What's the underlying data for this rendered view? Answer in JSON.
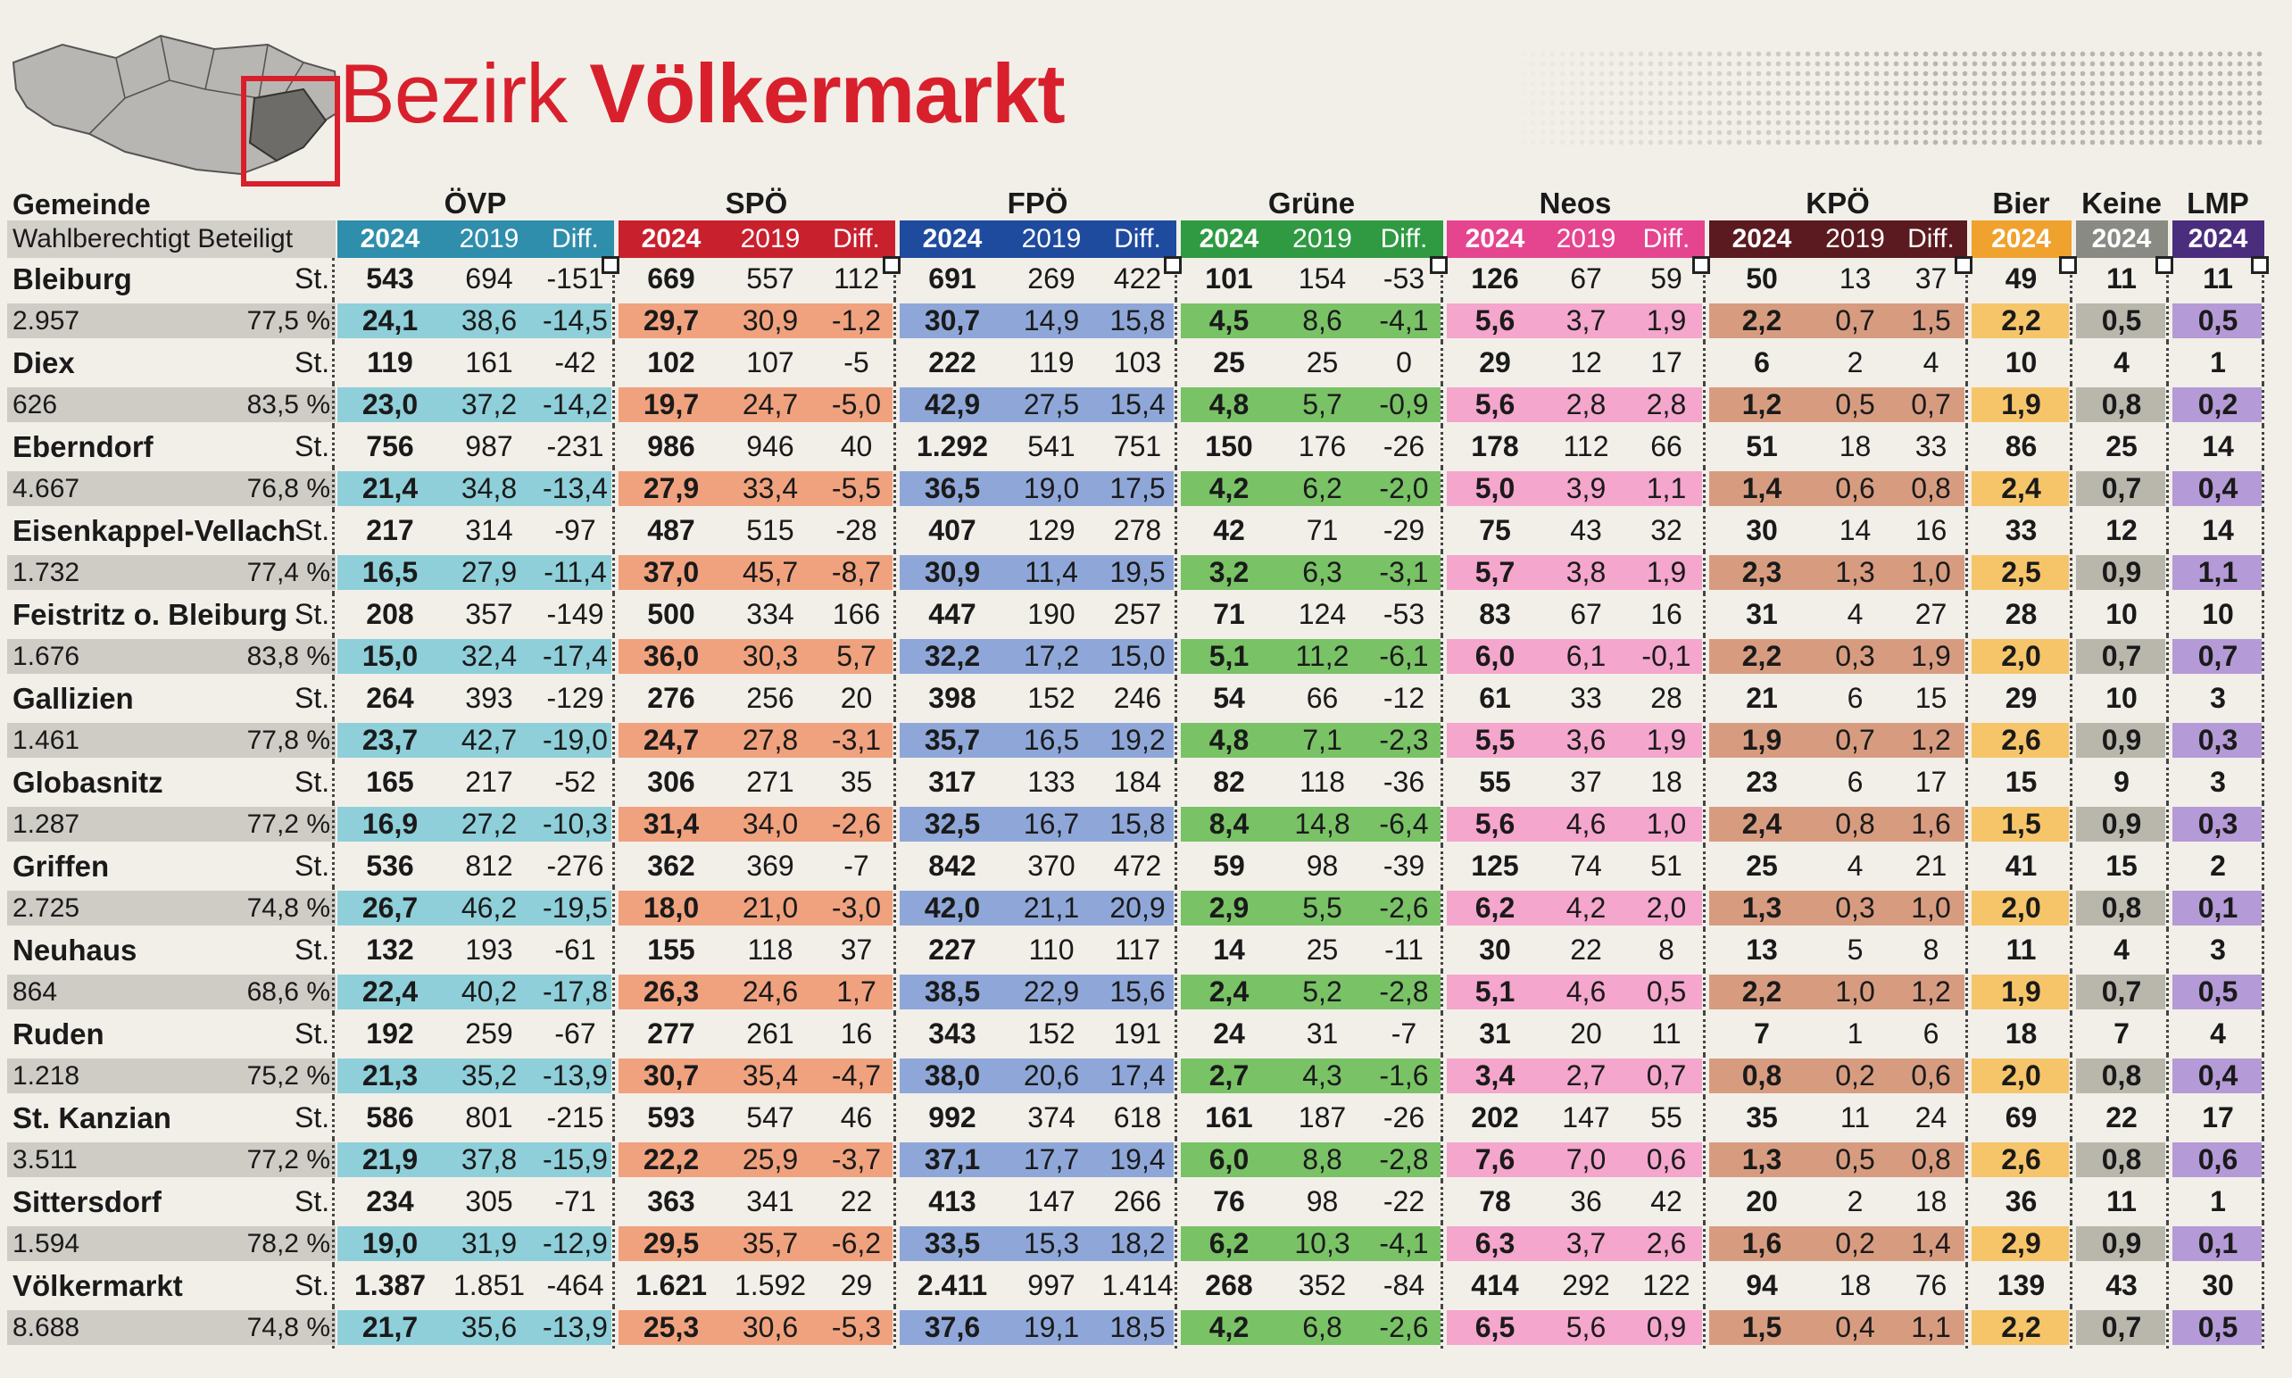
{
  "title": {
    "prefix": "Bezirk",
    "name": "Völkermarkt"
  },
  "header": {
    "gemeinde": "Gemeinde",
    "sub": "Wahlberechtigt  Beteiligt",
    "parties": [
      "ÖVP",
      "SPÖ",
      "FPÖ",
      "Grüne",
      "Neos",
      "KPÖ",
      "Bier",
      "Keine",
      "LMP"
    ],
    "years_full": [
      "2024",
      "2019",
      "Diff."
    ],
    "year_single": "2024"
  },
  "colors": {
    "ÖVP": {
      "head": "#2f8eab",
      "band": "#8ecfd9"
    },
    "SPÖ": {
      "head": "#c9202e",
      "band": "#f0a27e"
    },
    "FPÖ": {
      "head": "#1f4b9e",
      "band": "#8fa7d8"
    },
    "Grüne": {
      "head": "#2f9a42",
      "band": "#79c266"
    },
    "Neos": {
      "head": "#e5458f",
      "band": "#f4a6cc"
    },
    "KPÖ": {
      "head": "#5a1a1f",
      "band": "#d79c80"
    },
    "Bier": {
      "head": "#f0a22e",
      "band": "#f6c56a"
    },
    "Keine": {
      "head": "#8a8a84",
      "band": "#b9b7ac"
    },
    "LMP": {
      "head": "#4b2d7e",
      "band": "#b49ad6"
    }
  },
  "st_label": "St.",
  "rows": [
    {
      "name": "Bleiburg",
      "eligible": "2.957",
      "turnout": "77,5 %",
      "votes": [
        "543",
        "694",
        "-151",
        "669",
        "557",
        "112",
        "691",
        "269",
        "422",
        "101",
        "154",
        "-53",
        "126",
        "67",
        "59",
        "50",
        "13",
        "37",
        "49",
        "11",
        "11"
      ],
      "pct": [
        "24,1",
        "38,6",
        "-14,5",
        "29,7",
        "30,9",
        "-1,2",
        "30,7",
        "14,9",
        "15,8",
        "4,5",
        "8,6",
        "-4,1",
        "5,6",
        "3,7",
        "1,9",
        "2,2",
        "0,7",
        "1,5",
        "2,2",
        "0,5",
        "0,5"
      ]
    },
    {
      "name": "Diex",
      "eligible": "626",
      "turnout": "83,5 %",
      "votes": [
        "119",
        "161",
        "-42",
        "102",
        "107",
        "-5",
        "222",
        "119",
        "103",
        "25",
        "25",
        "0",
        "29",
        "12",
        "17",
        "6",
        "2",
        "4",
        "10",
        "4",
        "1"
      ],
      "pct": [
        "23,0",
        "37,2",
        "-14,2",
        "19,7",
        "24,7",
        "-5,0",
        "42,9",
        "27,5",
        "15,4",
        "4,8",
        "5,7",
        "-0,9",
        "5,6",
        "2,8",
        "2,8",
        "1,2",
        "0,5",
        "0,7",
        "1,9",
        "0,8",
        "0,2"
      ]
    },
    {
      "name": "Eberndorf",
      "eligible": "4.667",
      "turnout": "76,8 %",
      "votes": [
        "756",
        "987",
        "-231",
        "986",
        "946",
        "40",
        "1.292",
        "541",
        "751",
        "150",
        "176",
        "-26",
        "178",
        "112",
        "66",
        "51",
        "18",
        "33",
        "86",
        "25",
        "14"
      ],
      "pct": [
        "21,4",
        "34,8",
        "-13,4",
        "27,9",
        "33,4",
        "-5,5",
        "36,5",
        "19,0",
        "17,5",
        "4,2",
        "6,2",
        "-2,0",
        "5,0",
        "3,9",
        "1,1",
        "1,4",
        "0,6",
        "0,8",
        "2,4",
        "0,7",
        "0,4"
      ]
    },
    {
      "name": "Eisenkappel-Vellach",
      "eligible": "1.732",
      "turnout": "77,4 %",
      "votes": [
        "217",
        "314",
        "-97",
        "487",
        "515",
        "-28",
        "407",
        "129",
        "278",
        "42",
        "71",
        "-29",
        "75",
        "43",
        "32",
        "30",
        "14",
        "16",
        "33",
        "12",
        "14"
      ],
      "pct": [
        "16,5",
        "27,9",
        "-11,4",
        "37,0",
        "45,7",
        "-8,7",
        "30,9",
        "11,4",
        "19,5",
        "3,2",
        "6,3",
        "-3,1",
        "5,7",
        "3,8",
        "1,9",
        "2,3",
        "1,3",
        "1,0",
        "2,5",
        "0,9",
        "1,1"
      ]
    },
    {
      "name": "Feistritz o. Bleiburg",
      "eligible": "1.676",
      "turnout": "83,8 %",
      "votes": [
        "208",
        "357",
        "-149",
        "500",
        "334",
        "166",
        "447",
        "190",
        "257",
        "71",
        "124",
        "-53",
        "83",
        "67",
        "16",
        "31",
        "4",
        "27",
        "28",
        "10",
        "10"
      ],
      "pct": [
        "15,0",
        "32,4",
        "-17,4",
        "36,0",
        "30,3",
        "5,7",
        "32,2",
        "17,2",
        "15,0",
        "5,1",
        "11,2",
        "-6,1",
        "6,0",
        "6,1",
        "-0,1",
        "2,2",
        "0,3",
        "1,9",
        "2,0",
        "0,7",
        "0,7"
      ]
    },
    {
      "name": "Gallizien",
      "eligible": "1.461",
      "turnout": "77,8 %",
      "votes": [
        "264",
        "393",
        "-129",
        "276",
        "256",
        "20",
        "398",
        "152",
        "246",
        "54",
        "66",
        "-12",
        "61",
        "33",
        "28",
        "21",
        "6",
        "15",
        "29",
        "10",
        "3"
      ],
      "pct": [
        "23,7",
        "42,7",
        "-19,0",
        "24,7",
        "27,8",
        "-3,1",
        "35,7",
        "16,5",
        "19,2",
        "4,8",
        "7,1",
        "-2,3",
        "5,5",
        "3,6",
        "1,9",
        "1,9",
        "0,7",
        "1,2",
        "2,6",
        "0,9",
        "0,3"
      ]
    },
    {
      "name": "Globasnitz",
      "eligible": "1.287",
      "turnout": "77,2 %",
      "votes": [
        "165",
        "217",
        "-52",
        "306",
        "271",
        "35",
        "317",
        "133",
        "184",
        "82",
        "118",
        "-36",
        "55",
        "37",
        "18",
        "23",
        "6",
        "17",
        "15",
        "9",
        "3"
      ],
      "pct": [
        "16,9",
        "27,2",
        "-10,3",
        "31,4",
        "34,0",
        "-2,6",
        "32,5",
        "16,7",
        "15,8",
        "8,4",
        "14,8",
        "-6,4",
        "5,6",
        "4,6",
        "1,0",
        "2,4",
        "0,8",
        "1,6",
        "1,5",
        "0,9",
        "0,3"
      ]
    },
    {
      "name": "Griffen",
      "eligible": "2.725",
      "turnout": "74,8 %",
      "votes": [
        "536",
        "812",
        "-276",
        "362",
        "369",
        "-7",
        "842",
        "370",
        "472",
        "59",
        "98",
        "-39",
        "125",
        "74",
        "51",
        "25",
        "4",
        "21",
        "41",
        "15",
        "2"
      ],
      "pct": [
        "26,7",
        "46,2",
        "-19,5",
        "18,0",
        "21,0",
        "-3,0",
        "42,0",
        "21,1",
        "20,9",
        "2,9",
        "5,5",
        "-2,6",
        "6,2",
        "4,2",
        "2,0",
        "1,3",
        "0,3",
        "1,0",
        "2,0",
        "0,8",
        "0,1"
      ]
    },
    {
      "name": "Neuhaus",
      "eligible": "864",
      "turnout": "68,6 %",
      "votes": [
        "132",
        "193",
        "-61",
        "155",
        "118",
        "37",
        "227",
        "110",
        "117",
        "14",
        "25",
        "-11",
        "30",
        "22",
        "8",
        "13",
        "5",
        "8",
        "11",
        "4",
        "3"
      ],
      "pct": [
        "22,4",
        "40,2",
        "-17,8",
        "26,3",
        "24,6",
        "1,7",
        "38,5",
        "22,9",
        "15,6",
        "2,4",
        "5,2",
        "-2,8",
        "5,1",
        "4,6",
        "0,5",
        "2,2",
        "1,0",
        "1,2",
        "1,9",
        "0,7",
        "0,5"
      ]
    },
    {
      "name": "Ruden",
      "eligible": "1.218",
      "turnout": "75,2 %",
      "votes": [
        "192",
        "259",
        "-67",
        "277",
        "261",
        "16",
        "343",
        "152",
        "191",
        "24",
        "31",
        "-7",
        "31",
        "20",
        "11",
        "7",
        "1",
        "6",
        "18",
        "7",
        "4"
      ],
      "pct": [
        "21,3",
        "35,2",
        "-13,9",
        "30,7",
        "35,4",
        "-4,7",
        "38,0",
        "20,6",
        "17,4",
        "2,7",
        "4,3",
        "-1,6",
        "3,4",
        "2,7",
        "0,7",
        "0,8",
        "0,2",
        "0,6",
        "2,0",
        "0,8",
        "0,4"
      ]
    },
    {
      "name": "St. Kanzian",
      "eligible": "3.511",
      "turnout": "77,2 %",
      "votes": [
        "586",
        "801",
        "-215",
        "593",
        "547",
        "46",
        "992",
        "374",
        "618",
        "161",
        "187",
        "-26",
        "202",
        "147",
        "55",
        "35",
        "11",
        "24",
        "69",
        "22",
        "17"
      ],
      "pct": [
        "21,9",
        "37,8",
        "-15,9",
        "22,2",
        "25,9",
        "-3,7",
        "37,1",
        "17,7",
        "19,4",
        "6,0",
        "8,8",
        "-2,8",
        "7,6",
        "7,0",
        "0,6",
        "1,3",
        "0,5",
        "0,8",
        "2,6",
        "0,8",
        "0,6"
      ]
    },
    {
      "name": "Sittersdorf",
      "eligible": "1.594",
      "turnout": "78,2 %",
      "votes": [
        "234",
        "305",
        "-71",
        "363",
        "341",
        "22",
        "413",
        "147",
        "266",
        "76",
        "98",
        "-22",
        "78",
        "36",
        "42",
        "20",
        "2",
        "18",
        "36",
        "11",
        "1"
      ],
      "pct": [
        "19,0",
        "31,9",
        "-12,9",
        "29,5",
        "35,7",
        "-6,2",
        "33,5",
        "15,3",
        "18,2",
        "6,2",
        "10,3",
        "-4,1",
        "6,3",
        "3,7",
        "2,6",
        "1,6",
        "0,2",
        "1,4",
        "2,9",
        "0,9",
        "0,1"
      ]
    },
    {
      "name": "Völkermarkt",
      "eligible": "8.688",
      "turnout": "74,8 %",
      "votes": [
        "1.387",
        "1.851",
        "-464",
        "1.621",
        "1.592",
        "29",
        "2.411",
        "997",
        "1.414",
        "268",
        "352",
        "-84",
        "414",
        "292",
        "122",
        "94",
        "18",
        "76",
        "139",
        "43",
        "30"
      ],
      "pct": [
        "21,7",
        "35,6",
        "-13,9",
        "25,3",
        "30,6",
        "-5,3",
        "37,6",
        "19,1",
        "18,5",
        "4,2",
        "6,8",
        "-2,6",
        "6,5",
        "5,6",
        "0,9",
        "1,5",
        "0,4",
        "1,1",
        "2,2",
        "0,7",
        "0,5"
      ]
    }
  ]
}
